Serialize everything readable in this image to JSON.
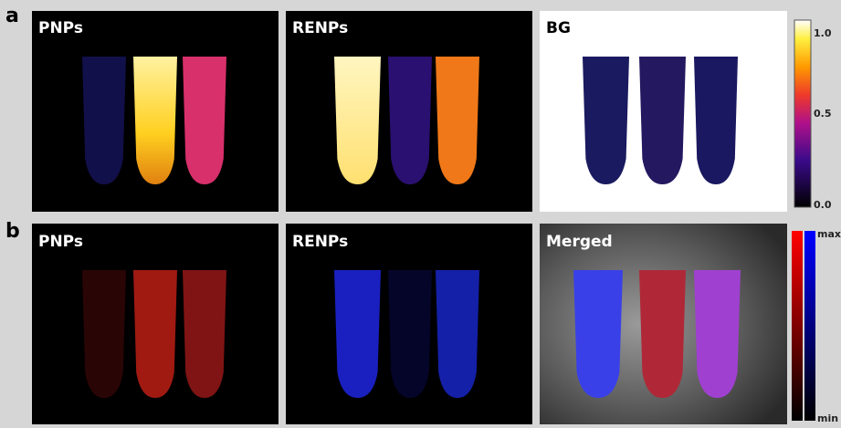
{
  "figure": {
    "row_a": {
      "label": "a",
      "panels": [
        "PNPs",
        "RENPs",
        "BG"
      ],
      "colorbar_ticks": [
        "1.0",
        "0.5",
        "0.0"
      ]
    },
    "row_b": {
      "label": "b",
      "panels": [
        "PNPs",
        "RENPs",
        "Merged"
      ],
      "colorbar_ticks": [
        "max",
        "min"
      ]
    }
  }
}
